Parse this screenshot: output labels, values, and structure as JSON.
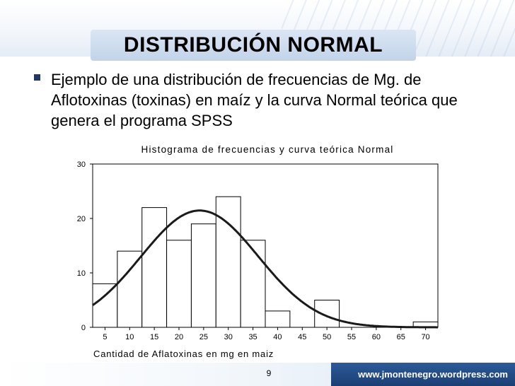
{
  "slide": {
    "title": "DISTRIBUCIÓN NORMAL",
    "bullet": "Ejemplo de una distribución de frecuencias de Mg. de Aflotoxinas (toxinas) en maíz y la curva Normal teórica que genera el programa SPSS",
    "page_number": "9",
    "website": "www.jmontenegro.wordpress.com"
  },
  "colors": {
    "accent": "#1f3864",
    "footer_bar": "#1b3f73",
    "title_bar": "#c9d9ee"
  },
  "chart_data": {
    "type": "bar",
    "title": "Histograma de frecuencias y curva teórica Normal",
    "xlabel": "Cantidad de Aflatoxinas en mg en maiz",
    "ylabel": "",
    "bin_width": 5,
    "bins": [
      {
        "center": 5,
        "value": 8
      },
      {
        "center": 10,
        "value": 14
      },
      {
        "center": 15,
        "value": 22
      },
      {
        "center": 20,
        "value": 16
      },
      {
        "center": 25,
        "value": 19
      },
      {
        "center": 30,
        "value": 24
      },
      {
        "center": 35,
        "value": 16
      },
      {
        "center": 40,
        "value": 3
      },
      {
        "center": 45,
        "value": 0
      },
      {
        "center": 50,
        "value": 5
      },
      {
        "center": 55,
        "value": 0
      },
      {
        "center": 60,
        "value": 0
      },
      {
        "center": 65,
        "value": 0
      },
      {
        "center": 70,
        "value": 1
      }
    ],
    "x_ticks": [
      5,
      10,
      15,
      20,
      25,
      30,
      35,
      40,
      45,
      50,
      55,
      60,
      65,
      70
    ],
    "y_ticks": [
      0,
      10,
      20,
      30
    ],
    "xlim": [
      2.5,
      72.5
    ],
    "ylim": [
      0,
      30
    ],
    "normal_curve": {
      "mean": 24.2,
      "sd": 11.9,
      "n": 128
    },
    "grid": false,
    "legend": "none"
  }
}
